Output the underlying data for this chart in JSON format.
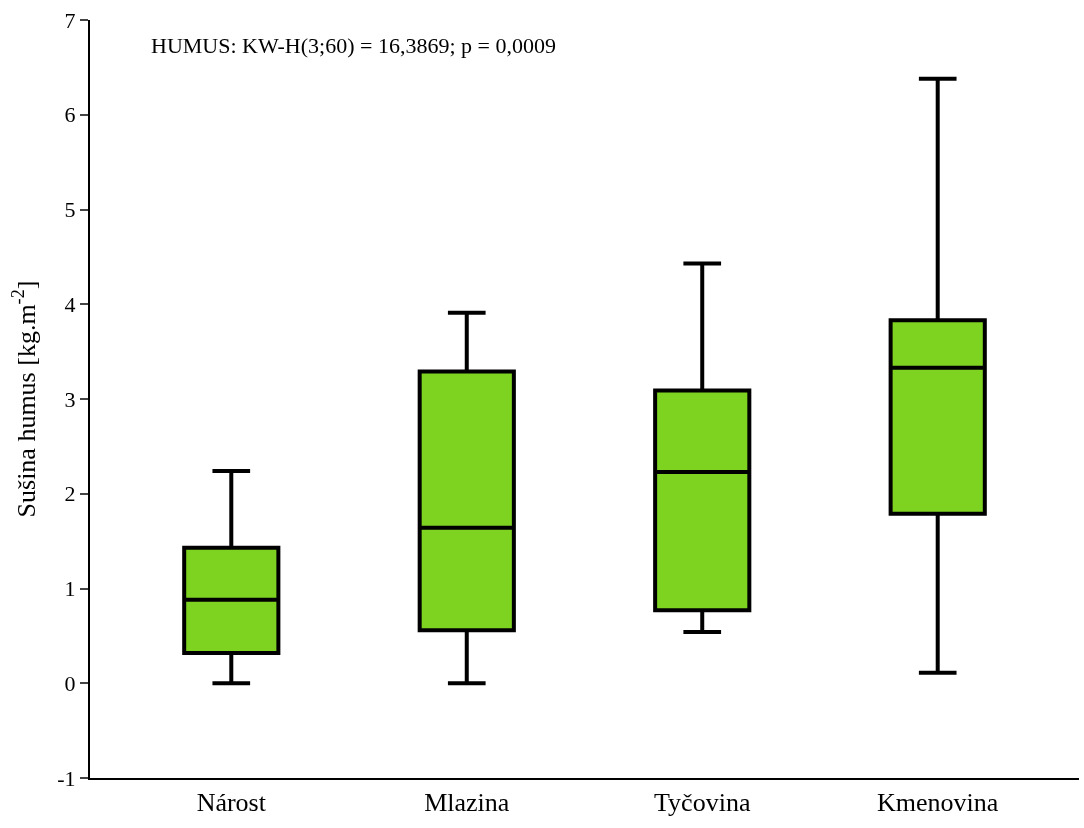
{
  "chart_data": {
    "type": "box",
    "categories": [
      "Nárost",
      "Mlazina",
      "Tyčovina",
      "Kmenovina"
    ],
    "color": "#7ed321",
    "boxes": [
      {
        "low": 0,
        "q1": 0.32,
        "median": 0.88,
        "q3": 1.43,
        "high": 2.24
      },
      {
        "low": 0,
        "q1": 0.56,
        "median": 1.64,
        "q3": 3.29,
        "high": 3.91
      },
      {
        "low": 0.54,
        "q1": 0.77,
        "median": 2.23,
        "q3": 3.09,
        "high": 4.43
      },
      {
        "low": 0.11,
        "q1": 1.79,
        "median": 3.33,
        "q3": 3.83,
        "high": 6.38
      }
    ],
    "ylabel": "Sušina humus [kg.m$^{-2}$]",
    "ylim": [
      -1,
      7
    ],
    "yticks": [
      -1,
      0,
      1,
      2,
      3,
      4,
      5,
      6,
      7
    ],
    "annotations": [
      "HUMUS: KW-H(3;60) = 16,3869; p = 0,0009"
    ]
  }
}
